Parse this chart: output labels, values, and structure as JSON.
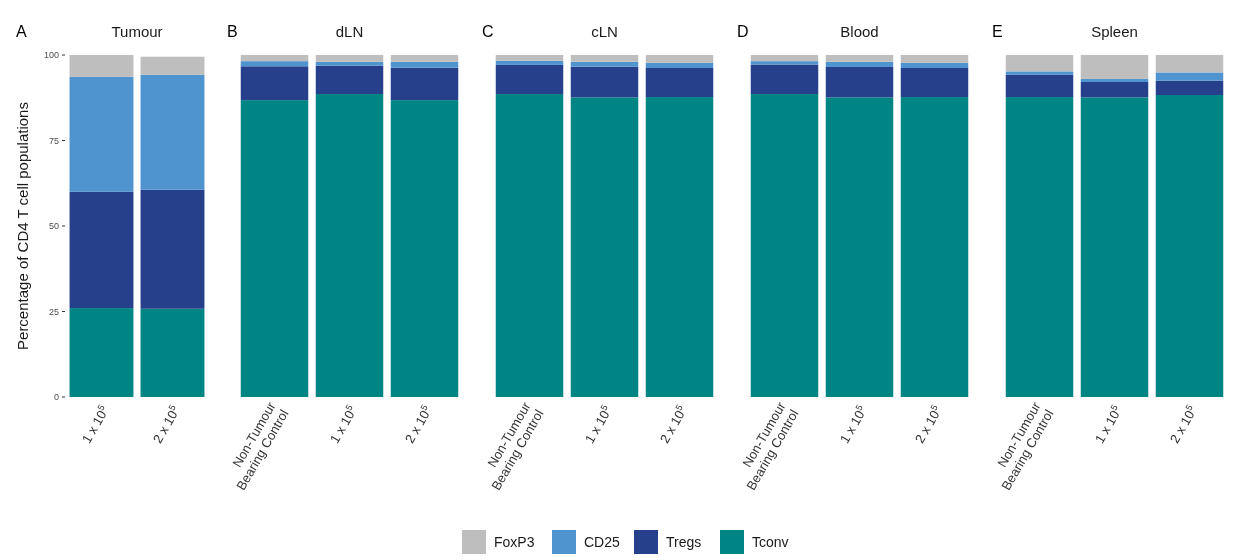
{
  "chart_data": [
    {
      "type": "bar",
      "stacked": true,
      "title": "Tumour",
      "ylabel": "Percentage of CD4 T cell populations",
      "annotations": [
        "A"
      ],
      "categories": [
        "1 x 10$^{5}$",
        "2 x 10$^{5}$"
      ],
      "ylim": [
        0,
        100
      ],
      "yticks": [
        0,
        25,
        50,
        75,
        100
      ],
      "legend": "bottom",
      "series": [
        {
          "name": "Tconv",
          "color": "#008585",
          "values": [
            26,
            25.8
          ]
        },
        {
          "name": "Tregs",
          "color": "#26408b",
          "values": [
            34,
            34.8
          ]
        },
        {
          "name": "CD25",
          "color": "#4f93cf",
          "values": [
            33.6,
            33.6
          ]
        },
        {
          "name": "FoxP3",
          "color": "#bebebe",
          "values": [
            6.4,
            5.3
          ]
        }
      ]
    },
    {
      "type": "bar",
      "stacked": true,
      "title": "dLN",
      "annotations": [
        "B"
      ],
      "categories": [
        "Non-Tumour Bearing Control",
        "1 x 10$^{5}$",
        "2 x 10$^{5}$"
      ],
      "ylim": [
        0,
        100
      ],
      "tick_labels": "x",
      "series": [
        {
          "name": "Tconv",
          "color": "#008585",
          "values": [
            86.8,
            88.6,
            86.8
          ]
        },
        {
          "name": "Tregs",
          "color": "#26408b",
          "values": [
            9.9,
            8.3,
            9.5
          ]
        },
        {
          "name": "CD25",
          "color": "#4f93cf",
          "values": [
            1.5,
            1.1,
            1.7
          ]
        },
        {
          "name": "FoxP3",
          "color": "#bebebe",
          "values": [
            1.8,
            2.0,
            2.0
          ]
        }
      ]
    },
    {
      "type": "bar",
      "stacked": true,
      "title": "cLN",
      "annotations": [
        "C"
      ],
      "categories": [
        "Non-Tumour Bearing Control",
        "1 x 10$^{5}$",
        "2 x 10$^{5}$"
      ],
      "ylim": [
        0,
        100
      ],
      "tick_labels": "x",
      "series": [
        {
          "name": "Tconv",
          "color": "#008585",
          "values": [
            88.6,
            87.6,
            87.7
          ]
        },
        {
          "name": "Tregs",
          "color": "#26408b",
          "values": [
            8.5,
            9.0,
            8.5
          ]
        },
        {
          "name": "CD25",
          "color": "#4f93cf",
          "values": [
            1.2,
            1.4,
            1.5
          ]
        },
        {
          "name": "FoxP3",
          "color": "#bebebe",
          "values": [
            1.7,
            2.0,
            2.3
          ]
        }
      ]
    },
    {
      "type": "bar",
      "stacked": true,
      "title": "Blood",
      "annotations": [
        "D"
      ],
      "categories": [
        "Non-Tumour Bearing Control",
        "1 x 10$^{5}$",
        "2 x 10$^{5}$"
      ],
      "ylim": [
        0,
        100
      ],
      "tick_labels": "x",
      "series": [
        {
          "name": "Tconv",
          "color": "#008585",
          "values": [
            88.6,
            87.6,
            87.7
          ]
        },
        {
          "name": "Tregs",
          "color": "#26408b",
          "values": [
            8.6,
            8.9,
            8.5
          ]
        },
        {
          "name": "CD25",
          "color": "#4f93cf",
          "values": [
            1.0,
            1.5,
            1.5
          ]
        },
        {
          "name": "FoxP3",
          "color": "#bebebe",
          "values": [
            1.8,
            2.0,
            2.3
          ]
        }
      ]
    },
    {
      "type": "bar",
      "stacked": true,
      "title": "Spleen",
      "annotations": [
        "E"
      ],
      "categories": [
        "Non-Tumour Bearing Control",
        "1 x 10$^{5}$",
        "2 x 10$^{5}$"
      ],
      "ylim": [
        0,
        100
      ],
      "tick_labels": "x",
      "series": [
        {
          "name": "Tconv",
          "color": "#008585",
          "values": [
            87.7,
            87.6,
            88.3
          ]
        },
        {
          "name": "Tregs",
          "color": "#26408b",
          "values": [
            6.5,
            4.5,
            4.2
          ]
        },
        {
          "name": "CD25",
          "color": "#4f93cf",
          "values": [
            1.0,
            0.9,
            2.4
          ]
        },
        {
          "name": "FoxP3",
          "color": "#bebebe",
          "values": [
            4.8,
            7.0,
            5.1
          ]
        }
      ]
    }
  ]
}
